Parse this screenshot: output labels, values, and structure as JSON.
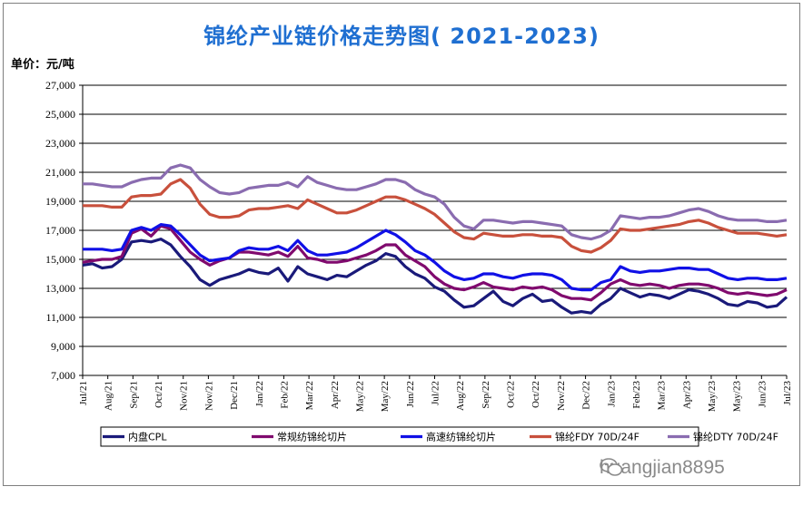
{
  "title": "锦纶产业链价格走势图( 2021-2023)",
  "unit_label": "单价：元/吨",
  "watermark": "huangjian8895",
  "chart_data": {
    "type": "line",
    "title": "锦纶产业链价格走势图( 2021-2023)",
    "ylabel": "单价：元/吨",
    "ylim": [
      7000,
      27000
    ],
    "yticks": [
      7000,
      9000,
      11000,
      13000,
      15000,
      17000,
      19000,
      21000,
      23000,
      25000,
      27000
    ],
    "ytick_labels": [
      "7,000",
      "9,000",
      "11,000",
      "13,000",
      "15,000",
      "17,000",
      "19,000",
      "21,000",
      "23,000",
      "25,000",
      "27,000"
    ],
    "x_labels": [
      "Jul/21",
      "Aug/21",
      "Sep/21",
      "Oct/21",
      "Nov/21",
      "Nov/21",
      "Dec/21",
      "Jan/22",
      "Feb/22",
      "Mar/22",
      "Apr/22",
      "May/22",
      "May/22",
      "Jun/22",
      "Jul/22",
      "Aug/22",
      "Sep/22",
      "Oct/22",
      "Oct/22",
      "Nov/22",
      "Dec/22",
      "Jan/23",
      "Feb/23",
      "Mar/23",
      "Apr/23",
      "May/23",
      "May/23",
      "Jun/23",
      "Jul/23"
    ],
    "grid": true,
    "legend_position": "bottom",
    "series": [
      {
        "name": "内盘CPL",
        "color": "#1a1a7a",
        "values": [
          14600,
          14700,
          14400,
          14500,
          15000,
          16200,
          16300,
          16200,
          16400,
          16000,
          15200,
          14500,
          13600,
          13200,
          13600,
          13800,
          14000,
          14300,
          14100,
          14000,
          14400,
          13500,
          14500,
          14000,
          13800,
          13600,
          13900,
          13800,
          14200,
          14600,
          14900,
          15400,
          15200,
          14500,
          14000,
          13700,
          13100,
          12800,
          12200,
          11700,
          11800,
          12300,
          12800,
          12100,
          11800,
          12300,
          12600,
          12100,
          12200,
          11700,
          11300,
          11400,
          11300,
          11900,
          12300,
          13000,
          12700,
          12400,
          12600,
          12500,
          12300,
          12600,
          12900,
          12800,
          12600,
          12300,
          11900,
          11800,
          12100,
          12000,
          11700,
          11800,
          12400
        ]
      },
      {
        "name": "常规纺锦纶切片",
        "color": "#800a6e",
        "values": [
          14800,
          14900,
          15000,
          15000,
          15200,
          16800,
          17100,
          16600,
          17300,
          17100,
          16300,
          15500,
          15000,
          14600,
          14900,
          15100,
          15500,
          15500,
          15400,
          15300,
          15500,
          15200,
          15900,
          15100,
          15000,
          14800,
          14800,
          14900,
          15100,
          15300,
          15600,
          16000,
          16000,
          15300,
          14900,
          14500,
          13800,
          13300,
          13000,
          12900,
          13100,
          13400,
          13100,
          13000,
          12900,
          13100,
          13000,
          13100,
          12900,
          12500,
          12300,
          12300,
          12200,
          12700,
          13300,
          13600,
          13300,
          13200,
          13300,
          13200,
          13000,
          13200,
          13300,
          13300,
          13200,
          13000,
          12700,
          12600,
          12700,
          12600,
          12500,
          12600,
          12900
        ]
      },
      {
        "name": "高速纺锦纶切片",
        "color": "#1010e6",
        "values": [
          15700,
          15700,
          15700,
          15600,
          15700,
          17000,
          17200,
          17000,
          17400,
          17300,
          16700,
          16000,
          15300,
          14900,
          15000,
          15100,
          15600,
          15800,
          15700,
          15700,
          15900,
          15600,
          16300,
          15600,
          15300,
          15300,
          15400,
          15500,
          15800,
          16200,
          16600,
          17000,
          16700,
          16200,
          15600,
          15300,
          14800,
          14200,
          13800,
          13600,
          13700,
          14000,
          14000,
          13800,
          13700,
          13900,
          14000,
          14000,
          13900,
          13600,
          13000,
          12900,
          12900,
          13400,
          13600,
          14500,
          14200,
          14100,
          14200,
          14200,
          14300,
          14400,
          14400,
          14300,
          14300,
          14000,
          13700,
          13600,
          13700,
          13700,
          13600,
          13600,
          13700
        ]
      },
      {
        "name": "锦纶FDY 70D/24F",
        "color": "#c8503c",
        "values": [
          18700,
          18700,
          18700,
          18600,
          18600,
          19300,
          19400,
          19400,
          19500,
          20200,
          20500,
          19900,
          18800,
          18100,
          17900,
          17900,
          18000,
          18400,
          18500,
          18500,
          18600,
          18700,
          18500,
          19100,
          18800,
          18500,
          18200,
          18200,
          18400,
          18700,
          19000,
          19300,
          19300,
          19100,
          18800,
          18500,
          18100,
          17500,
          16900,
          16500,
          16400,
          16800,
          16700,
          16600,
          16600,
          16700,
          16700,
          16600,
          16600,
          16500,
          15900,
          15600,
          15500,
          15800,
          16300,
          17100,
          17000,
          17000,
          17100,
          17200,
          17300,
          17400,
          17600,
          17700,
          17500,
          17200,
          17000,
          16800,
          16800,
          16800,
          16700,
          16600,
          16700
        ]
      },
      {
        "name": "锦纶DTY 70D/24F",
        "color": "#8a6cb0",
        "values": [
          20200,
          20200,
          20100,
          20000,
          20000,
          20300,
          20500,
          20600,
          20600,
          21300,
          21500,
          21300,
          20500,
          20000,
          19600,
          19500,
          19600,
          19900,
          20000,
          20100,
          20100,
          20300,
          20000,
          20700,
          20300,
          20100,
          19900,
          19800,
          19800,
          20000,
          20200,
          20500,
          20500,
          20300,
          19800,
          19500,
          19300,
          18800,
          17900,
          17300,
          17100,
          17700,
          17700,
          17600,
          17500,
          17600,
          17600,
          17500,
          17400,
          17300,
          16700,
          16500,
          16400,
          16600,
          17000,
          18000,
          17900,
          17800,
          17900,
          17900,
          18000,
          18200,
          18400,
          18500,
          18300,
          18000,
          17800,
          17700,
          17700,
          17700,
          17600,
          17600,
          17700
        ]
      }
    ]
  }
}
